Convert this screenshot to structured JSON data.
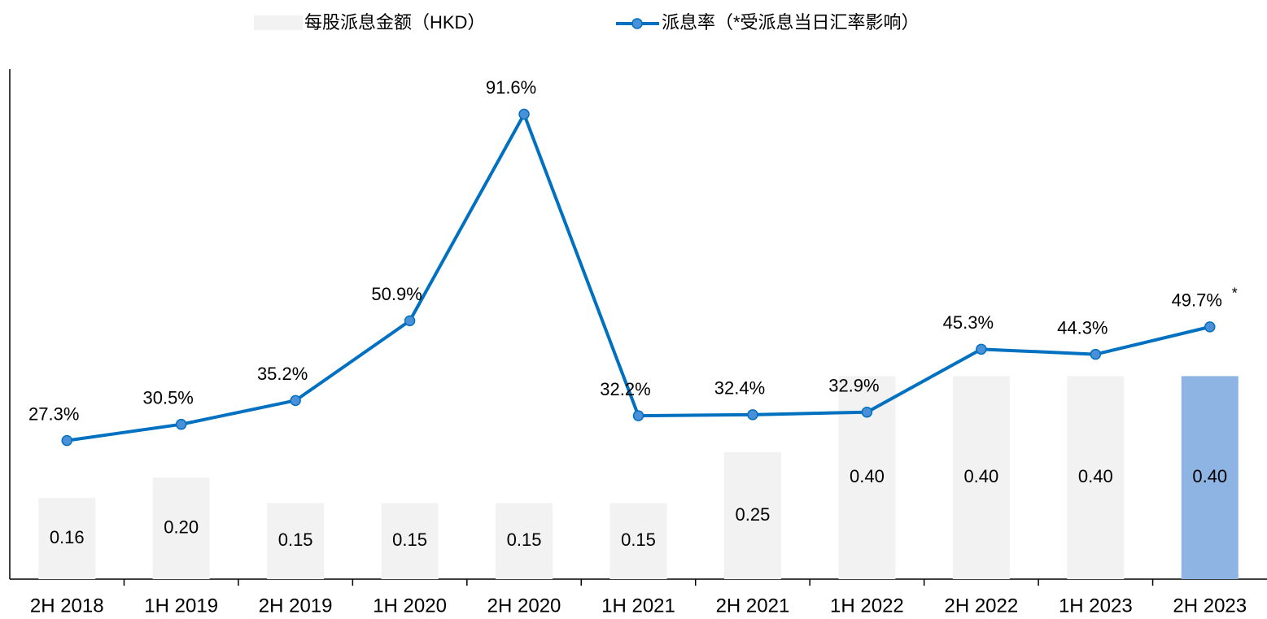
{
  "chart_data": {
    "type": "bar-line",
    "categories": [
      "2H 2018",
      "1H 2019",
      "2H 2019",
      "1H 2020",
      "2H 2020",
      "1H 2021",
      "2H 2021",
      "1H 2022",
      "2H 2022",
      "1H 2023",
      "2H 2023"
    ],
    "series": [
      {
        "name": "每股派息金额（HKD）",
        "type": "bar",
        "color": "#f2f2f2",
        "colors": [
          "#f2f2f2",
          "#f2f2f2",
          "#f2f2f2",
          "#f2f2f2",
          "#f2f2f2",
          "#f2f2f2",
          "#f2f2f2",
          "#f2f2f2",
          "#f2f2f2",
          "#f2f2f2",
          "#8eb4e3"
        ],
        "values": [
          0.16,
          0.2,
          0.15,
          0.15,
          0.15,
          0.15,
          0.25,
          0.4,
          0.4,
          0.4,
          0.4
        ],
        "value_labels": [
          "0.16",
          "0.20",
          "0.15",
          "0.15",
          "0.15",
          "0.15",
          "0.25",
          "0.40",
          "0.40",
          "0.40",
          "0.40"
        ]
      },
      {
        "name": "派息率（*受派息当日汇率影响）",
        "type": "line",
        "axis": "y2",
        "color": "#0070c0",
        "marker_color": "#4a90d9",
        "values": [
          27.3,
          30.5,
          35.2,
          50.9,
          91.6,
          32.2,
          32.4,
          32.9,
          45.3,
          44.3,
          49.7
        ],
        "value_labels": [
          "27.3%",
          "30.5%",
          "35.2%",
          "50.9%",
          "91.6%",
          "32.2%",
          "32.4%",
          "32.9%",
          "45.3%",
          "44.3%",
          "49.7%"
        ]
      }
    ],
    "annotations": [
      {
        "text": "*",
        "index": 10
      }
    ],
    "ylim": [
      0,
      1
    ],
    "y2lim": [
      0,
      100
    ],
    "legend": "top"
  }
}
